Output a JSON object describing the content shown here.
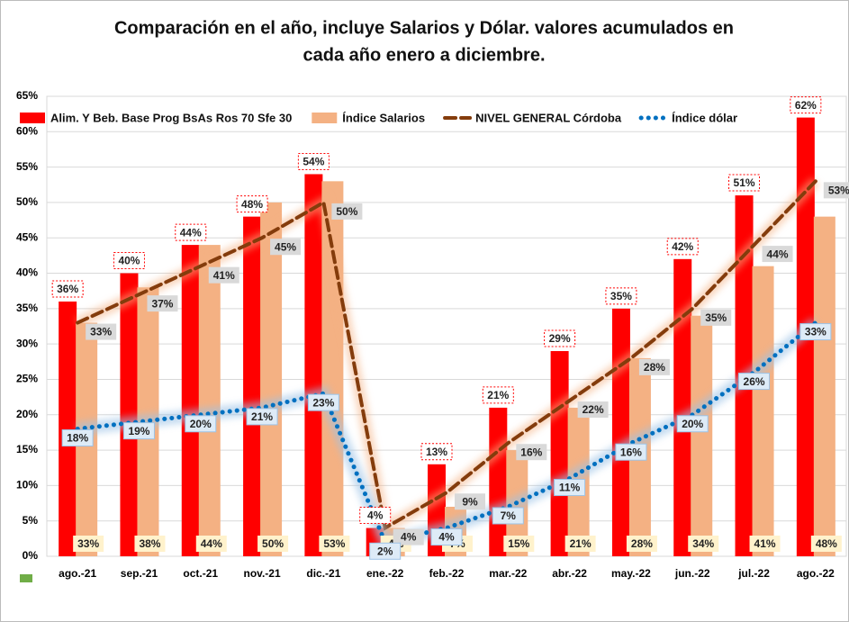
{
  "chart_data": {
    "type": "bar_line",
    "title": [
      "Comparación en el año, incluye Salarios y Dólar. valores  acumulados en",
      "cada año enero a diciembre."
    ],
    "categories": [
      "ago.-21",
      "sep.-21",
      "oct.-21",
      "nov.-21",
      "dic.-21",
      "ene.-22",
      "feb.-22",
      "mar.-22",
      "abr.-22",
      "may.-22",
      "jun.-22",
      "jul.-22",
      "ago.-22"
    ],
    "ylim": [
      0,
      65
    ],
    "yticks": [
      {
        "value": 0,
        "label": "0%"
      },
      {
        "value": 5,
        "label": "5%"
      },
      {
        "value": 10,
        "label": "10%"
      },
      {
        "value": 15,
        "label": "15%"
      },
      {
        "value": 20,
        "label": "20%"
      },
      {
        "value": 25,
        "label": "25%"
      },
      {
        "value": 30,
        "label": "30%"
      },
      {
        "value": 35,
        "label": "35%"
      },
      {
        "value": 40,
        "label": "40%"
      },
      {
        "value": 45,
        "label": "45%"
      },
      {
        "value": 50,
        "label": "50%"
      },
      {
        "value": 55,
        "label": "55%"
      },
      {
        "value": 60,
        "label": "60%"
      },
      {
        "value": 65,
        "label": "65%"
      }
    ],
    "grid": true,
    "legend": "top",
    "series": [
      {
        "name": "Alim. Y Beb.  Base Prog BsAs Ros 70 Sfe 30",
        "kind": "bar",
        "color": "#ff0000",
        "values": [
          36,
          40,
          44,
          48,
          54,
          4,
          13,
          21,
          29,
          35,
          42,
          51,
          62
        ],
        "value_labels": [
          "36%",
          "40%",
          "44%",
          "48%",
          "54%",
          "4%",
          "13%",
          "21%",
          "29%",
          "35%",
          "42%",
          "51%",
          "62%"
        ]
      },
      {
        "name": "Índice Salarios",
        "kind": "bar",
        "color": "#f4b183",
        "values": [
          33,
          38,
          44,
          50,
          53,
          4,
          7,
          15,
          21,
          28,
          34,
          41,
          48
        ],
        "value_labels": [
          "33%",
          "38%",
          "44%",
          "50%",
          "53%",
          "4%",
          "7%",
          "15%",
          "21%",
          "28%",
          "34%",
          "41%",
          "48%"
        ]
      },
      {
        "name": "NIVEL GENERAL Córdoba",
        "kind": "dashed",
        "color": "#843c0c",
        "values": [
          33,
          37,
          41,
          45,
          50,
          4,
          9,
          16,
          22,
          28,
          35,
          44,
          53
        ],
        "value_labels": [
          "33%",
          "37%",
          "41%",
          "45%",
          "50%",
          "4%",
          "9%",
          "16%",
          "22%",
          "28%",
          "35%",
          "44%",
          "53%"
        ]
      },
      {
        "name": "Índice dólar",
        "kind": "dotted",
        "color": "#0070c0",
        "values": [
          18,
          19,
          20,
          21,
          23,
          2,
          4,
          7,
          11,
          16,
          20,
          26,
          33
        ],
        "value_labels": [
          "18%",
          "19%",
          "20%",
          "21%",
          "23%",
          "2%",
          "4%",
          "7%",
          "11%",
          "16%",
          "20%",
          "26%",
          "33%"
        ]
      }
    ]
  }
}
